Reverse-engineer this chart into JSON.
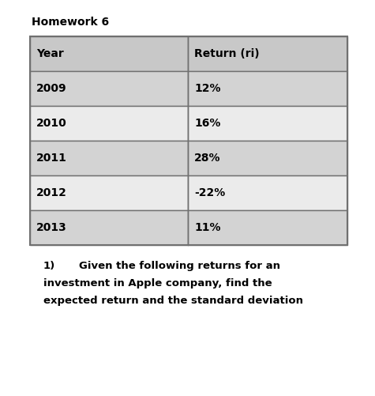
{
  "title": "Homework 6",
  "col_headers": [
    "Year",
    "Return (ri)"
  ],
  "rows": [
    [
      "2009",
      "12%"
    ],
    [
      "2010",
      "16%"
    ],
    [
      "2011",
      "28%"
    ],
    [
      "2012",
      "-22%"
    ],
    [
      "2013",
      "11%"
    ]
  ],
  "question_number": "1)",
  "question_text_line1": "Given the following returns for an",
  "question_text_line2": "investment in Apple company, find the",
  "question_text_line3": "expected return and the standard deviation",
  "bg_color": "#ffffff",
  "header_row_bg": "#c8c8c8",
  "odd_row_bg": "#d3d3d3",
  "even_row_bg": "#ebebeb",
  "table_border_color": "#707070",
  "title_fontsize": 10,
  "header_fontsize": 10,
  "cell_fontsize": 10,
  "question_fontsize": 9.5
}
